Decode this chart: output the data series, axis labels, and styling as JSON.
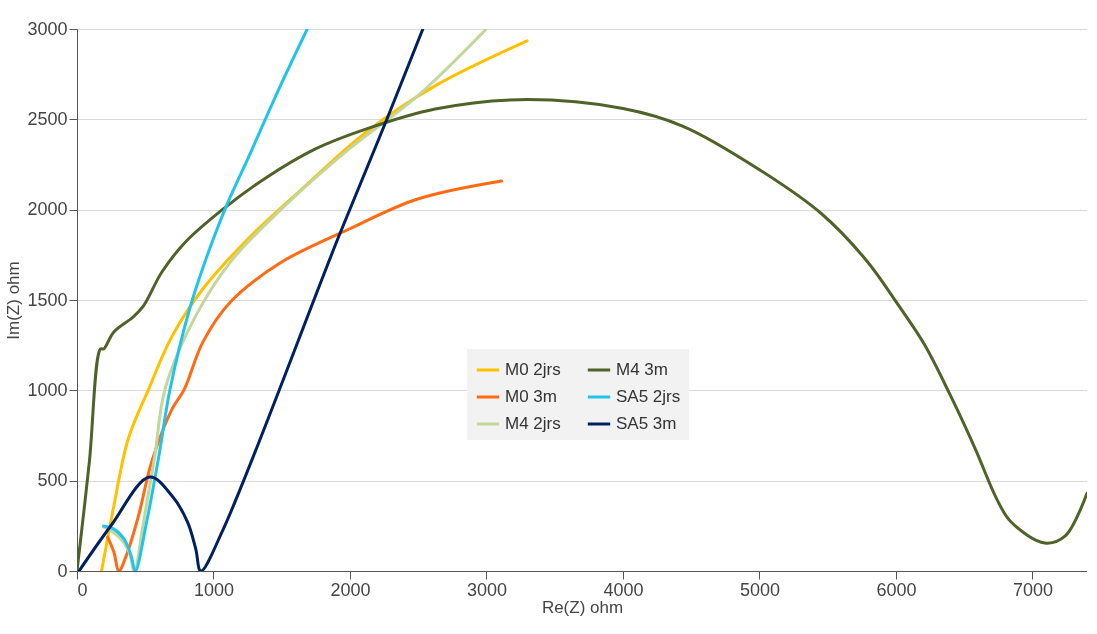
{
  "chart_data": {
    "type": "line",
    "xlabel": "Re(Z) ohm",
    "ylabel": "Im(Z) ohm",
    "xlim": [
      0,
      7400
    ],
    "ylim": [
      0,
      3000
    ],
    "xticks": [
      0,
      1000,
      2000,
      3000,
      4000,
      5000,
      6000,
      7000
    ],
    "yticks": [
      0,
      500,
      1000,
      1500,
      2000,
      2500,
      3000
    ],
    "grid": "y",
    "legend": "bottom",
    "marker": "none",
    "line_style": "solid",
    "series": [
      {
        "name": "M0 2jrs",
        "color": "#ffc000",
        "x": [
          180,
          210,
          270,
          375,
          525,
          697,
          922,
          1274,
          1672,
          2121,
          2624,
          3298
        ],
        "values": [
          0,
          122,
          360,
          730,
          1007,
          1300,
          1561,
          1854,
          2131,
          2430,
          2685,
          2934
        ]
      },
      {
        "name": "M0 3m",
        "color": "#ff6a13",
        "x": [
          225,
          270,
          307,
          360,
          450,
          547,
          697,
          787,
          922,
          1124,
          1499,
          1994,
          2496,
          3111
        ],
        "values": [
          188,
          105,
          0,
          83,
          304,
          603,
          897,
          1007,
          1267,
          1489,
          1710,
          1893,
          2059,
          2159
        ]
      },
      {
        "name": "M4 2jrs",
        "color": "#c3d69b",
        "x": [
          195,
          307,
          382,
          420,
          487,
          570,
          645,
          870,
          1124,
          1499,
          1994,
          2496,
          2999
        ],
        "values": [
          244,
          188,
          105,
          0,
          271,
          637,
          1007,
          1412,
          1710,
          2004,
          2336,
          2630,
          3000
        ]
      },
      {
        "name": "M4 3m",
        "color": "#4f6228",
        "x": [
          0,
          90,
          172,
          195,
          270,
          412,
          487,
          622,
          795,
          1072,
          1372,
          1747,
          2121,
          2624,
          3246,
          4000,
          4445,
          5015,
          5457,
          5787,
          6012,
          6207,
          6394,
          6582,
          6739,
          6844,
          7091,
          7241,
          7400
        ],
        "values": [
          0,
          600,
          1229,
          1229,
          1323,
          1406,
          1467,
          1655,
          1821,
          2004,
          2170,
          2336,
          2447,
          2557,
          2609,
          2560,
          2460,
          2214,
          1976,
          1716,
          1478,
          1256,
          980,
          675,
          398,
          271,
          155,
          194,
          430
        ]
      },
      {
        "name": "SA5 2jrs",
        "color": "#21c4e8",
        "x": [
          195,
          270,
          345,
          397,
          427,
          510,
          600,
          682,
          825,
          945,
          1094,
          1274,
          1469,
          1687
        ],
        "values": [
          249,
          232,
          177,
          83,
          0,
          271,
          637,
          1007,
          1450,
          1727,
          2020,
          2319,
          2651,
          3000
        ]
      },
      {
        "name": "SA5 3m",
        "color": "#002060",
        "x": [
          15,
          247,
          532,
          697,
          810,
          870,
          907,
          1072,
          1919,
          2271,
          2534
        ],
        "values": [
          0,
          249,
          520,
          415,
          271,
          122,
          0,
          232,
          1854,
          2502,
          3000
        ]
      }
    ]
  }
}
